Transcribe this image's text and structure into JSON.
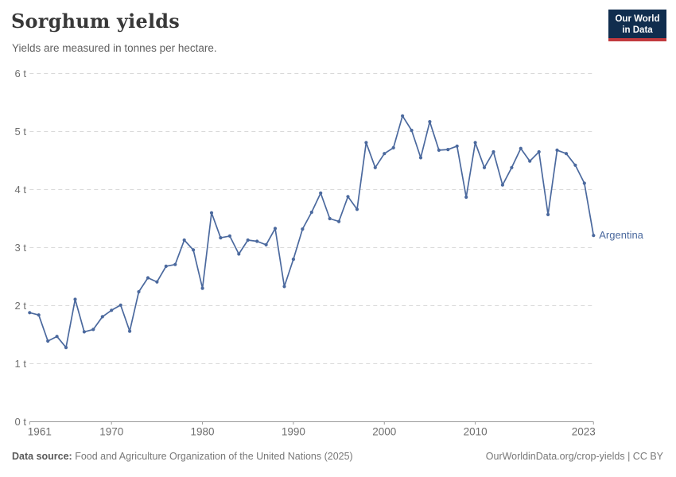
{
  "header": {
    "title": "Sorghum yields",
    "subtitle": "Yields are measured in tonnes per hectare."
  },
  "logo": {
    "line1": "Our World",
    "line2": "in Data",
    "bg_color": "#102d4e",
    "accent_color": "#c13a3e"
  },
  "chart_data": {
    "type": "line",
    "title": "Sorghum yields",
    "ylabel": "tonnes per hectare",
    "xlabel": "",
    "entity": "Argentina",
    "line_color": "#4b699e",
    "grid": true,
    "xlim": [
      1961,
      2023
    ],
    "ylim": [
      0,
      6
    ],
    "y_ticks": [
      0,
      1,
      2,
      3,
      4,
      5,
      6
    ],
    "y_tick_suffix": " t",
    "x_ticks": [
      1961,
      1970,
      1980,
      1990,
      2000,
      2010,
      2023
    ],
    "x": [
      1961,
      1962,
      1963,
      1964,
      1965,
      1966,
      1967,
      1968,
      1969,
      1970,
      1971,
      1972,
      1973,
      1974,
      1975,
      1976,
      1977,
      1978,
      1979,
      1980,
      1981,
      1982,
      1983,
      1984,
      1985,
      1986,
      1987,
      1988,
      1989,
      1990,
      1991,
      1992,
      1993,
      1994,
      1995,
      1996,
      1997,
      1998,
      1999,
      2000,
      2001,
      2002,
      2003,
      2004,
      2005,
      2006,
      2007,
      2008,
      2009,
      2010,
      2011,
      2012,
      2013,
      2014,
      2015,
      2016,
      2017,
      2018,
      2019,
      2020,
      2021,
      2022,
      2023
    ],
    "series": [
      {
        "name": "Argentina",
        "values": [
          1.88,
          1.84,
          1.39,
          1.47,
          1.28,
          2.11,
          1.55,
          1.59,
          1.81,
          1.92,
          2.01,
          1.56,
          2.24,
          2.48,
          2.41,
          2.68,
          2.71,
          3.13,
          2.96,
          2.3,
          3.6,
          3.17,
          3.2,
          2.89,
          3.13,
          3.11,
          3.05,
          3.33,
          2.33,
          2.8,
          3.32,
          3.61,
          3.94,
          3.5,
          3.45,
          3.88,
          3.66,
          4.81,
          4.38,
          4.62,
          4.72,
          5.27,
          5.02,
          4.55,
          5.17,
          4.68,
          4.69,
          4.75,
          3.87,
          4.81,
          4.38,
          4.65,
          4.08,
          4.38,
          4.71,
          4.49,
          4.65,
          3.57,
          4.68,
          4.62,
          4.42,
          4.11,
          3.21
        ]
      }
    ]
  },
  "footer": {
    "data_source_label": "Data source:",
    "data_source_text": " Food and Agriculture Organization of the United Nations (2025)",
    "citation": "OurWorldinData.org/crop-yields | CC BY"
  }
}
